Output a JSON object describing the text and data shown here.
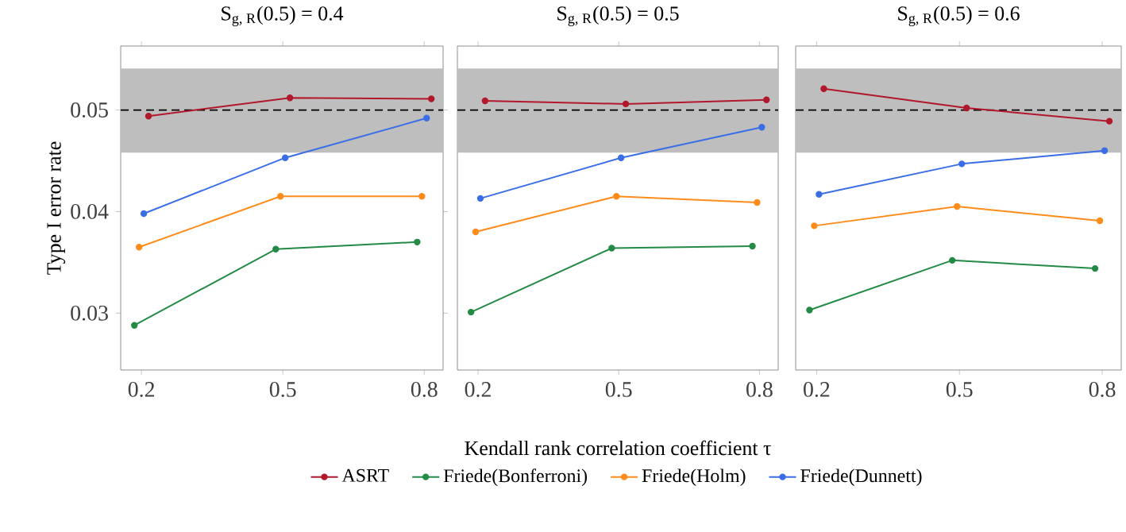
{
  "chart_data": [
    {
      "type": "line",
      "title": "\\text{S}_{\\text{g, R}}\\text{(0.5) = 0.4}",
      "ylabel": "Type I error rate",
      "xlim": [
        0.156,
        0.84
      ],
      "ylim": [
        0.0244,
        0.0563
      ],
      "xticks": [
        0.2,
        0.5,
        0.8
      ],
      "yticks": [
        0.03,
        0.04,
        0.05
      ],
      "marker": "circle",
      "line_style": "solid",
      "grid": false,
      "ref_lines": [
        {
          "axis": "y",
          "value": 0.05,
          "color": "#000000",
          "line_style": "dashed"
        }
      ],
      "bands": [
        {
          "axis": "y",
          "from": 0.0458,
          "to": 0.0541,
          "color": "#bebebe"
        }
      ],
      "series": [
        {
          "color": "#b2182b",
          "x": [
            0.215,
            0.515,
            0.815
          ],
          "values": [
            0.0494,
            0.0512,
            0.0511
          ]
        },
        {
          "color": "#238b45",
          "x": [
            0.185,
            0.485,
            0.785
          ],
          "values": [
            0.0288,
            0.0363,
            0.037
          ]
        },
        {
          "color": "#ff8c1a",
          "x": [
            0.195,
            0.495,
            0.795
          ],
          "values": [
            0.0365,
            0.0415,
            0.0415
          ]
        },
        {
          "color": "#3a6ee6",
          "x": [
            0.205,
            0.505,
            0.805
          ],
          "values": [
            0.0398,
            0.0453,
            0.0492
          ]
        }
      ]
    },
    {
      "type": "line",
      "title": "\\text{S}_{\\text{g, R}}\\text{(0.5) = 0.5}",
      "xlabel": "Kendall rank correlation coefficient τ",
      "xlim": [
        0.156,
        0.84
      ],
      "ylim": [
        0.0244,
        0.0563
      ],
      "xticks": [
        0.2,
        0.5,
        0.8
      ],
      "yticks": [
        0.03,
        0.04,
        0.05
      ],
      "tick_labels": "x",
      "marker": "circle",
      "line_style": "solid",
      "grid": false,
      "legend": "bottom",
      "ref_lines": [
        {
          "axis": "y",
          "value": 0.05,
          "color": "#000000",
          "line_style": "dashed"
        }
      ],
      "bands": [
        {
          "axis": "y",
          "from": 0.0458,
          "to": 0.0541,
          "color": "#bebebe"
        }
      ],
      "series": [
        {
          "name": "ASRT",
          "color": "#b2182b",
          "x": [
            0.215,
            0.515,
            0.815
          ],
          "values": [
            0.0509,
            0.0506,
            0.051
          ]
        },
        {
          "name": "Friede(Bonferroni)",
          "color": "#238b45",
          "x": [
            0.185,
            0.485,
            0.785
          ],
          "values": [
            0.0301,
            0.0364,
            0.0366
          ]
        },
        {
          "name": "Friede(Holm)",
          "color": "#ff8c1a",
          "x": [
            0.195,
            0.495,
            0.795
          ],
          "values": [
            0.038,
            0.0415,
            0.0409
          ]
        },
        {
          "name": "Friede(Dunnett)",
          "color": "#3a6ee6",
          "x": [
            0.205,
            0.505,
            0.805
          ],
          "values": [
            0.0413,
            0.0453,
            0.0483
          ]
        }
      ]
    },
    {
      "type": "line",
      "title": "\\text{S}_{\\text{g, R}}\\text{(0.5) = 0.6}",
      "xlim": [
        0.156,
        0.84
      ],
      "ylim": [
        0.0244,
        0.0563
      ],
      "xticks": [
        0.2,
        0.5,
        0.8
      ],
      "yticks": [
        0.03,
        0.04,
        0.05
      ],
      "tick_labels": "x",
      "marker": "circle",
      "line_style": "solid",
      "grid": false,
      "ref_lines": [
        {
          "axis": "y",
          "value": 0.05,
          "color": "#000000",
          "line_style": "dashed"
        }
      ],
      "bands": [
        {
          "axis": "y",
          "from": 0.0458,
          "to": 0.0541,
          "color": "#bebebe"
        }
      ],
      "series": [
        {
          "color": "#b2182b",
          "x": [
            0.215,
            0.515,
            0.815
          ],
          "values": [
            0.0521,
            0.0502,
            0.0489
          ]
        },
        {
          "color": "#238b45",
          "x": [
            0.185,
            0.485,
            0.785
          ],
          "values": [
            0.0303,
            0.0352,
            0.0344
          ]
        },
        {
          "color": "#ff8c1a",
          "x": [
            0.195,
            0.495,
            0.795
          ],
          "values": [
            0.0386,
            0.0405,
            0.0391
          ]
        },
        {
          "color": "#3a6ee6",
          "x": [
            0.205,
            0.505,
            0.805
          ],
          "values": [
            0.0417,
            0.0447,
            0.046
          ]
        }
      ]
    }
  ]
}
